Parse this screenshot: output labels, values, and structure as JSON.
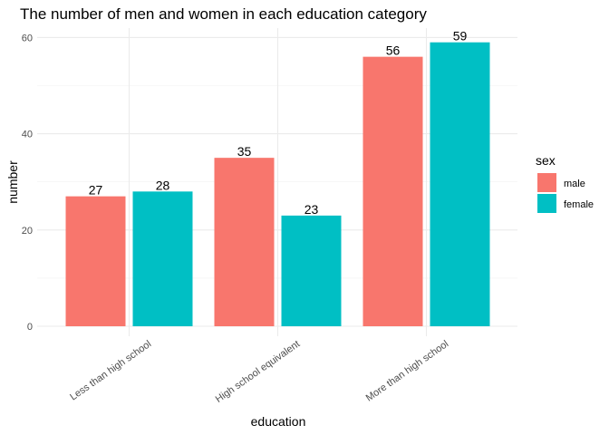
{
  "chart_data": {
    "type": "bar",
    "title": "The number of men and women in each education category",
    "xlabel": "education",
    "ylabel": "number",
    "categories": [
      "Less than high school",
      "High school equivalent",
      "More than high school"
    ],
    "series": [
      {
        "name": "male",
        "color": "#F8766D",
        "values": [
          27,
          35,
          56
        ]
      },
      {
        "name": "female",
        "color": "#00BFC4",
        "values": [
          28,
          23,
          59
        ]
      }
    ],
    "ylim": [
      0,
      62
    ],
    "yticks": [
      0,
      20,
      40,
      60
    ],
    "grid": true,
    "legend": {
      "title": "sex",
      "placement": "right"
    }
  }
}
